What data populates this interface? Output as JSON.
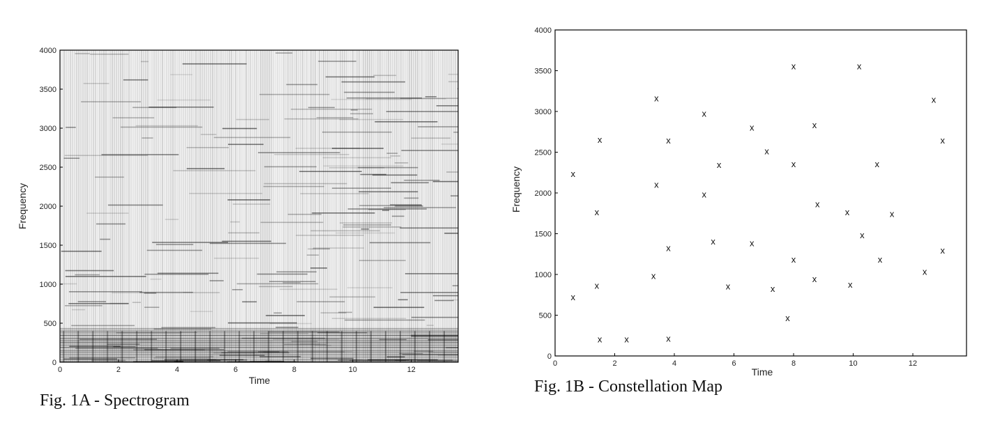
{
  "figure_a": {
    "caption": "Fig. 1A - Spectrogram"
  },
  "figure_b": {
    "caption": "Fig. 1B - Constellation Map"
  },
  "chart_data": [
    {
      "type": "heatmap",
      "title": "",
      "xlabel": "Time",
      "ylabel": "Frequency",
      "xlim": [
        0,
        13.6
      ],
      "ylim": [
        0,
        4000
      ],
      "x_ticks": [
        0,
        2,
        4,
        6,
        8,
        10,
        12
      ],
      "y_ticks": [
        0,
        500,
        1000,
        1500,
        2000,
        2500,
        3000,
        3500,
        4000
      ],
      "colormap": "grayscale (dark = high energy)",
      "grid": false
    },
    {
      "type": "scatter",
      "title": "",
      "xlabel": "Time",
      "ylabel": "Frequency",
      "xlim": [
        0,
        13.8
      ],
      "ylim": [
        0,
        4000
      ],
      "x_ticks": [
        0,
        2,
        4,
        6,
        8,
        10,
        12
      ],
      "y_ticks": [
        0,
        500,
        1000,
        1500,
        2000,
        2500,
        3000,
        3500,
        4000
      ],
      "marker": "x",
      "grid": false,
      "points": [
        [
          0.6,
          2230
        ],
        [
          0.6,
          720
        ],
        [
          1.4,
          1760
        ],
        [
          1.4,
          860
        ],
        [
          1.5,
          2650
        ],
        [
          1.5,
          200
        ],
        [
          2.4,
          200
        ],
        [
          3.3,
          980
        ],
        [
          3.4,
          3160
        ],
        [
          3.4,
          2100
        ],
        [
          3.8,
          2640
        ],
        [
          3.8,
          1320
        ],
        [
          3.8,
          210
        ],
        [
          5.0,
          2970
        ],
        [
          5.0,
          1980
        ],
        [
          5.3,
          1400
        ],
        [
          5.5,
          2340
        ],
        [
          5.8,
          850
        ],
        [
          6.6,
          2800
        ],
        [
          6.6,
          1380
        ],
        [
          7.1,
          2510
        ],
        [
          7.3,
          820
        ],
        [
          7.8,
          460
        ],
        [
          8.0,
          3550
        ],
        [
          8.0,
          2350
        ],
        [
          8.0,
          1180
        ],
        [
          8.7,
          2830
        ],
        [
          8.7,
          940
        ],
        [
          8.8,
          1860
        ],
        [
          9.8,
          1760
        ],
        [
          9.9,
          870
        ],
        [
          10.2,
          3550
        ],
        [
          10.3,
          1480
        ],
        [
          10.8,
          2350
        ],
        [
          10.9,
          1180
        ],
        [
          11.3,
          1740
        ],
        [
          12.4,
          1030
        ],
        [
          12.7,
          3140
        ],
        [
          13.0,
          2640
        ],
        [
          13.0,
          1290
        ]
      ]
    }
  ]
}
